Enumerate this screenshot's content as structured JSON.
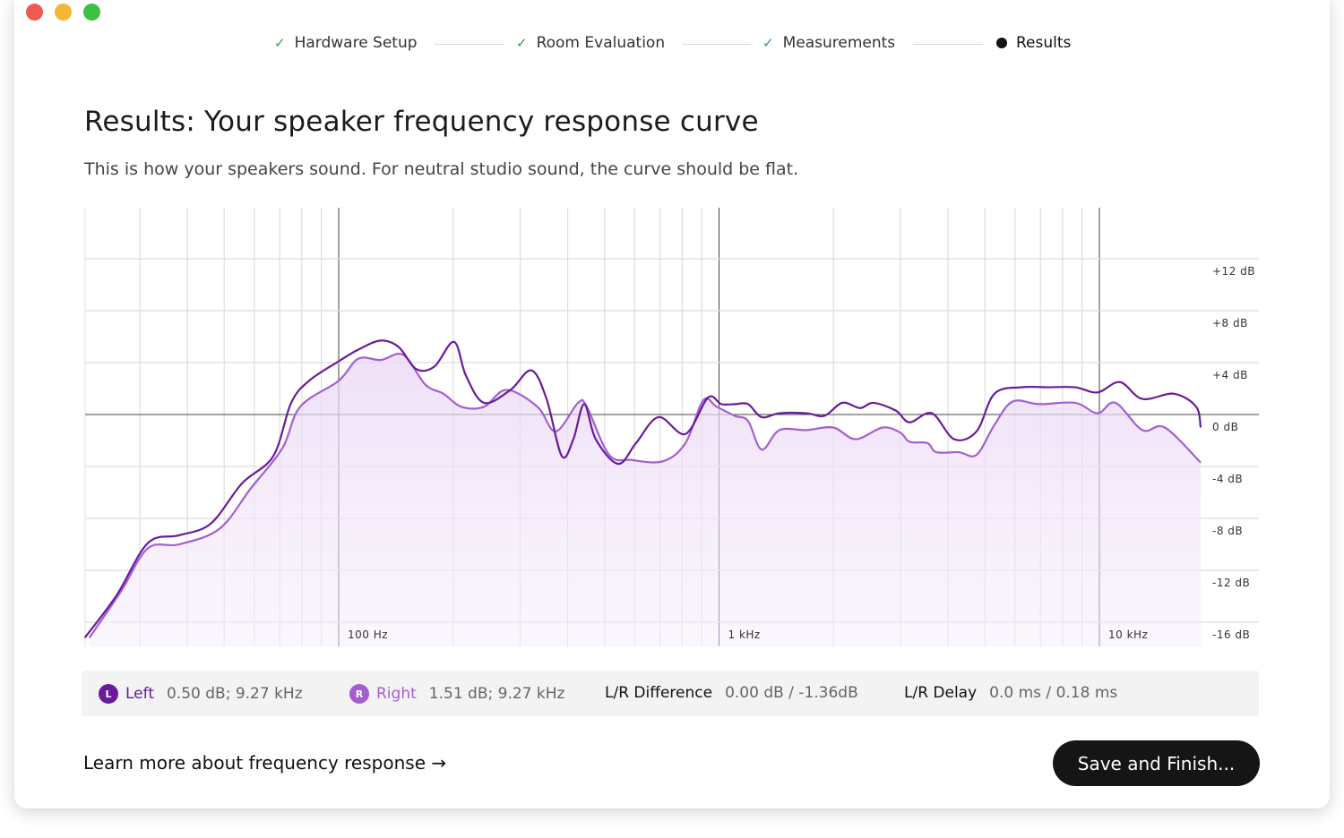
{
  "window": {
    "controls": [
      "close",
      "minimize",
      "zoom"
    ],
    "colors": {
      "close": "#ee5a52",
      "minimize": "#f5b635",
      "zoom": "#3ec141"
    }
  },
  "steps": [
    {
      "label": "Hardware Setup",
      "status": "done",
      "icon": "check-icon"
    },
    {
      "label": "Room Evaluation",
      "status": "done",
      "icon": "check-icon"
    },
    {
      "label": "Measurements",
      "status": "done",
      "icon": "check-icon"
    },
    {
      "label": "Results",
      "status": "current",
      "icon": "dot-icon"
    }
  ],
  "title": "Results: Your speaker frequency response curve",
  "subtitle": "This is how your speakers sound. For neutral studio sound, the curve should be flat.",
  "chart_data": {
    "type": "line",
    "x_scale": "log",
    "xlim": [
      21.5,
      20000
    ],
    "ylim": [
      -18,
      16
    ],
    "grid": true,
    "x_tick_labels": [
      {
        "value": 100,
        "label": "100 Hz"
      },
      {
        "value": 1000,
        "label": "1 kHz"
      },
      {
        "value": 10000,
        "label": "10 kHz"
      }
    ],
    "y_tick_labels": [
      {
        "value": 12,
        "label": "+12 dB"
      },
      {
        "value": 8,
        "label": "+8 dB"
      },
      {
        "value": 4,
        "label": "+4 dB"
      },
      {
        "value": 0,
        "label": "0 dB"
      },
      {
        "value": -4,
        "label": "-4 dB"
      },
      {
        "value": -8,
        "label": "-8 dB"
      },
      {
        "value": -12,
        "label": "-12 dB"
      },
      {
        "value": -16,
        "label": "-16 dB"
      }
    ],
    "series": [
      {
        "name": "Left",
        "color": "#6a1b9a",
        "points": [
          [
            21.5,
            -17.2
          ],
          [
            26.1,
            -13.9
          ],
          [
            31.5,
            -9.9
          ],
          [
            38.1,
            -9.3
          ],
          [
            46.1,
            -8.4
          ],
          [
            55.7,
            -5.3
          ],
          [
            67.3,
            -3.2
          ],
          [
            75,
            0.9
          ],
          [
            83.6,
            2.6
          ],
          [
            100,
            4.1
          ],
          [
            112.6,
            5.0
          ],
          [
            129,
            5.7
          ],
          [
            143.8,
            5.2
          ],
          [
            160,
            3.5
          ],
          [
            178.6,
            3.7
          ],
          [
            201,
            5.6
          ],
          [
            216,
            3.0
          ],
          [
            241,
            0.9
          ],
          [
            283,
            1.9
          ],
          [
            321,
            3.4
          ],
          [
            352,
            1.2
          ],
          [
            386,
            -3.2
          ],
          [
            414,
            -1.9
          ],
          [
            442,
            0.8
          ],
          [
            474,
            -1.9
          ],
          [
            543,
            -3.8
          ],
          [
            605,
            -2.2
          ],
          [
            693,
            -0.2
          ],
          [
            816,
            -1.5
          ],
          [
            935,
            1.3
          ],
          [
            1014,
            0.8
          ],
          [
            1100,
            0.8
          ],
          [
            1192,
            0.8
          ],
          [
            1294,
            -0.2
          ],
          [
            1442,
            0.1
          ],
          [
            1698,
            0.1
          ],
          [
            1892,
            -0.1
          ],
          [
            2109,
            0.9
          ],
          [
            2349,
            0.5
          ],
          [
            2547,
            0.9
          ],
          [
            2917,
            0.3
          ],
          [
            3168,
            -0.6
          ],
          [
            3626,
            0.1
          ],
          [
            4150,
            -1.9
          ],
          [
            4753,
            -1.3
          ],
          [
            5297,
            1.6
          ],
          [
            6237,
            2.1
          ],
          [
            7345,
            2.1
          ],
          [
            8635,
            2.1
          ],
          [
            9890,
            1.7
          ],
          [
            11320,
            2.5
          ],
          [
            12970,
            1.2
          ],
          [
            15700,
            1.6
          ],
          [
            17960,
            0.6
          ],
          [
            18460,
            -1.0
          ]
        ]
      },
      {
        "name": "Right",
        "color": "#a35fd0",
        "points": [
          [
            22.1,
            -17.2
          ],
          [
            26.8,
            -13.6
          ],
          [
            31.5,
            -10.3
          ],
          [
            38.1,
            -10.0
          ],
          [
            48.6,
            -8.8
          ],
          [
            58.7,
            -5.7
          ],
          [
            71.1,
            -2.6
          ],
          [
            79.2,
            0.6
          ],
          [
            100,
            2.6
          ],
          [
            112.6,
            4.3
          ],
          [
            129,
            4.2
          ],
          [
            147.8,
            4.6
          ],
          [
            169,
            2.3
          ],
          [
            188.6,
            1.6
          ],
          [
            210,
            0.6
          ],
          [
            241,
            0.6
          ],
          [
            276,
            1.9
          ],
          [
            333,
            0.6
          ],
          [
            372,
            -1.3
          ],
          [
            426,
            0.9
          ],
          [
            449,
            0.6
          ],
          [
            514,
            -3.1
          ],
          [
            589,
            -3.5
          ],
          [
            712,
            -3.6
          ],
          [
            816,
            -2.2
          ],
          [
            909,
            1.1
          ],
          [
            986,
            0.6
          ],
          [
            1100,
            -0.1
          ],
          [
            1192,
            -0.5
          ],
          [
            1294,
            -2.7
          ],
          [
            1442,
            -1.2
          ],
          [
            1698,
            -1.2
          ],
          [
            1996,
            -1.0
          ],
          [
            2286,
            -1.9
          ],
          [
            2691,
            -1.0
          ],
          [
            2998,
            -1.4
          ],
          [
            3168,
            -2.1
          ],
          [
            3531,
            -2.2
          ],
          [
            3727,
            -2.9
          ],
          [
            4265,
            -2.9
          ],
          [
            4753,
            -3.1
          ],
          [
            5297,
            -0.8
          ],
          [
            5913,
            1.0
          ],
          [
            6953,
            0.8
          ],
          [
            8635,
            0.9
          ],
          [
            9890,
            0.1
          ],
          [
            11020,
            0.9
          ],
          [
            12970,
            -1.2
          ],
          [
            14860,
            -1.0
          ],
          [
            18460,
            -3.7
          ]
        ],
        "filled": true
      }
    ]
  },
  "summary": {
    "left": {
      "badge": "L",
      "label": "Left",
      "value": "0.50 dB; 9.27 kHz",
      "color": "#6a1b9a"
    },
    "right": {
      "badge": "R",
      "label": "Right",
      "value": "1.51 dB; 9.27 kHz",
      "color": "#a35fd0"
    },
    "difference": {
      "label": "L/R Difference",
      "value": "0.00 dB / -1.36dB"
    },
    "delay": {
      "label": "L/R Delay",
      "value": "0.0 ms / 0.18 ms"
    }
  },
  "learn_more": "Learn more about frequency response →",
  "save_button": "Save and Finish..."
}
